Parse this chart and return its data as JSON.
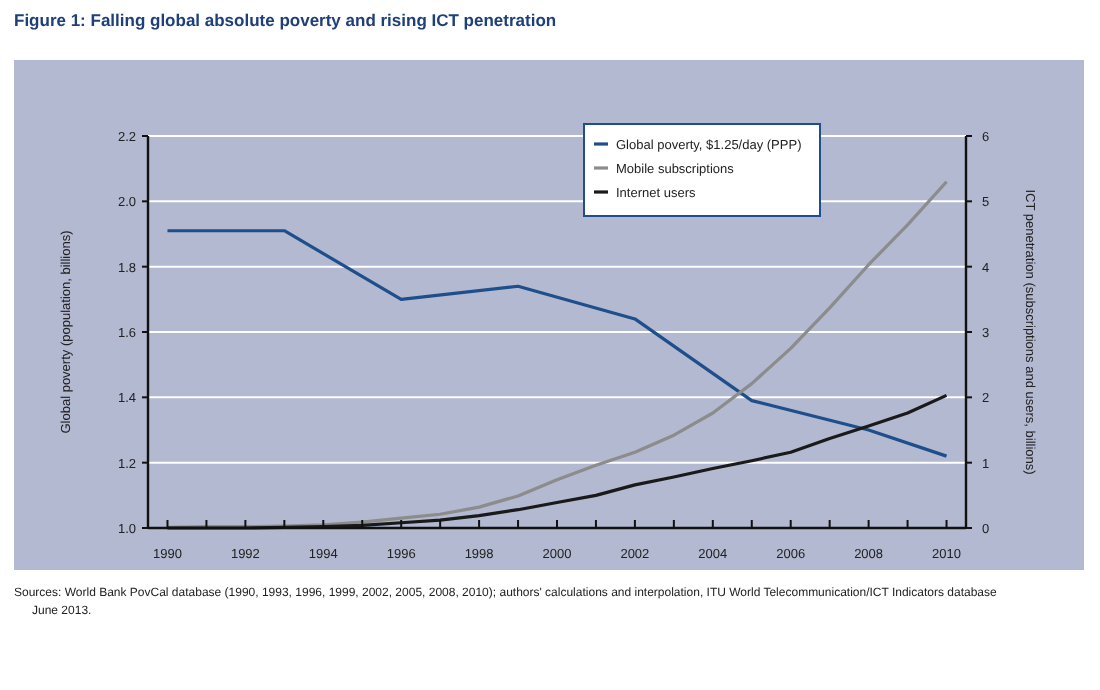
{
  "chart_data": {
    "type": "line",
    "title": "Figure 1: Falling global absolute poverty and rising ICT penetration",
    "ylabel": "Global poverty (population, billions)",
    "y2label": "ICT penetration (subscriptions and users, billions)",
    "x": [
      1990,
      1991,
      1992,
      1993,
      1994,
      1995,
      1996,
      1997,
      1998,
      1999,
      2000,
      2001,
      2002,
      2003,
      2004,
      2005,
      2006,
      2007,
      2008,
      2009,
      2010
    ],
    "series": [
      {
        "name": "Global poverty, $1.25/day (PPP)",
        "color": "#1f4e8c",
        "x": [
          1990,
          1993,
          1996,
          1999,
          2002,
          2005,
          2008,
          2010
        ],
        "values": [
          1.91,
          1.91,
          1.7,
          1.74,
          1.64,
          1.39,
          1.3,
          1.22
        ]
      },
      {
        "name": "Mobile subscriptions",
        "color": "#8c8c8c",
        "axis": "y2",
        "values": [
          0.01,
          0.02,
          0.02,
          0.03,
          0.05,
          0.09,
          0.15,
          0.21,
          0.32,
          0.49,
          0.74,
          0.96,
          1.16,
          1.42,
          1.76,
          2.21,
          2.75,
          3.37,
          4.03,
          4.64,
          5.3
        ]
      },
      {
        "name": "Internet users",
        "color": "#1a1a1a",
        "axis": "y2",
        "values": [
          0,
          0,
          0,
          0.01,
          0.02,
          0.04,
          0.08,
          0.12,
          0.19,
          0.28,
          0.39,
          0.5,
          0.66,
          0.78,
          0.91,
          1.03,
          1.16,
          1.37,
          1.56,
          1.76,
          2.03
        ]
      }
    ],
    "xlim": [
      1989.5,
      2010.5
    ],
    "xticks": [
      1990,
      {
        "value": 1991,
        "label": null
      },
      1992,
      {
        "value": 1993,
        "label": null
      },
      1994,
      {
        "value": 1995,
        "label": null
      },
      1996,
      {
        "value": 1997,
        "label": null
      },
      1998,
      {
        "value": 1999,
        "label": null
      },
      2000,
      {
        "value": 2001,
        "label": null
      },
      2002,
      {
        "value": 2003,
        "label": null
      },
      2004,
      {
        "value": 2005,
        "label": null
      },
      2006,
      {
        "value": 2007,
        "label": null
      },
      2008,
      {
        "value": 2009,
        "label": null
      },
      2010
    ],
    "ylim": [
      1.0,
      2.2
    ],
    "yticks": [
      {
        "value": 1.0,
        "label": "1.0"
      },
      1.2,
      1.4,
      1.6,
      1.8,
      {
        "value": 2.0,
        "label": "2.0"
      },
      2.2
    ],
    "y2lim": [
      0,
      6
    ],
    "y2ticks": [
      0,
      1,
      2,
      3,
      4,
      5,
      6
    ],
    "grid": "y",
    "legend": "top right",
    "marker": "none",
    "line_style": "solid",
    "annotations": [
      "Sources: World Bank PovCal database (1990, 1993, 1996, 1999, 2002, 2005, 2008, 2010); authors' calculations and interpolation, ITU World Telecommunication/ICT Indicators database June 2013."
    ]
  }
}
